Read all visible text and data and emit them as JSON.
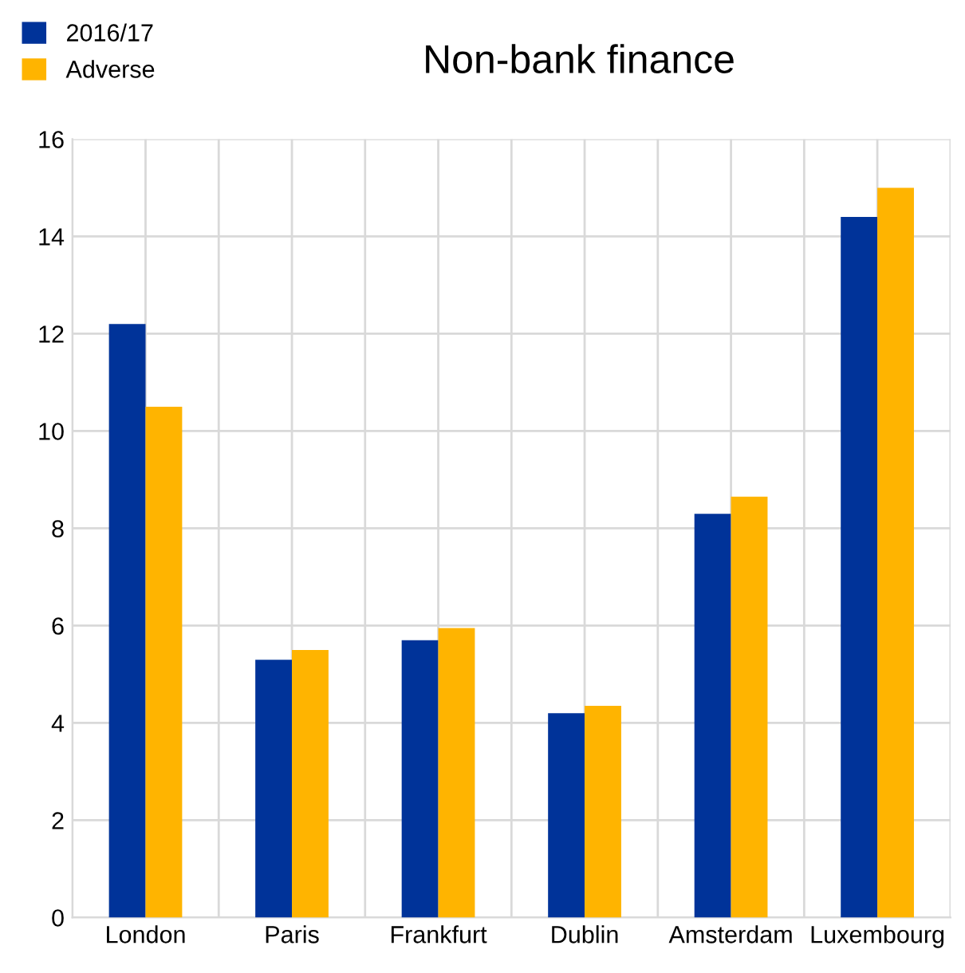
{
  "chart_data": {
    "type": "bar",
    "title": "Non-bank finance",
    "categories": [
      "London",
      "Paris",
      "Frankfurt",
      "Dublin",
      "Amsterdam",
      "Luxembourg"
    ],
    "series": [
      {
        "name": "2016/17",
        "color": "#003399",
        "values": [
          12.2,
          5.3,
          5.7,
          4.2,
          8.3,
          14.4
        ]
      },
      {
        "name": "Adverse",
        "color": "#ffb400",
        "values": [
          10.5,
          5.5,
          5.95,
          4.35,
          8.65,
          15.0
        ]
      }
    ],
    "ylim": [
      0,
      16
    ],
    "yticks": [
      0,
      2,
      4,
      6,
      8,
      10,
      12,
      14,
      16
    ],
    "grid": true,
    "legend": "top left"
  }
}
